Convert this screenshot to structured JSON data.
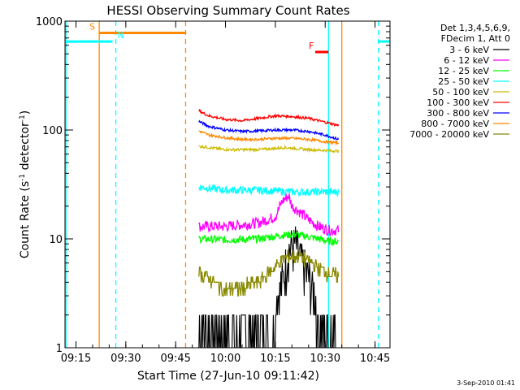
{
  "chart_data": {
    "type": "line",
    "title": "HESSI Observing Summary Count Rates",
    "xlabel": "Start Time (27-Jun-10 09:11:42)",
    "ylabel_main": "Count Rate (s",
    "ylabel_sup1": "-1",
    "ylabel_mid": " detector",
    "ylabel_sup2": "-1",
    "ylabel_end": ")",
    "footer": "3-Sep-2010 01:41",
    "yscale": "log",
    "xlim": [
      "09:11:42",
      "10:49:30"
    ],
    "ylim": [
      1,
      1000
    ],
    "x_ticks": [
      "09:15",
      "09:30",
      "09:45",
      "10:00",
      "10:15",
      "10:30",
      "10:45"
    ],
    "y_ticks": [
      {
        "label": "1",
        "value": 1
      },
      {
        "label": "10",
        "value": 10
      },
      {
        "label": "100",
        "value": 100
      },
      {
        "label": "1000",
        "value": 1000
      }
    ],
    "legend": {
      "header1": "Det 1,3,4,5,6,9,",
      "header2": "FDecim 1, Att 0",
      "position": "top-right"
    },
    "series": [
      {
        "name": "3 - 6 keV",
        "color": "#000000",
        "x": [
          "09:52",
          "10:00",
          "10:10",
          "10:13",
          "10:16",
          "10:18",
          "10:19",
          "10:21",
          "10:22",
          "10:24",
          "10:26",
          "10:28",
          "10:31",
          "10:34"
        ],
        "y": [
          1.7,
          1.6,
          1.7,
          1.9,
          3.5,
          6,
          9,
          10,
          8,
          6,
          4,
          2.5,
          1.6,
          1.5
        ]
      },
      {
        "name": "6 - 12 keV",
        "color": "#ff00ff",
        "x": [
          "09:52",
          "10:00",
          "10:10",
          "10:15",
          "10:17",
          "10:19",
          "10:20",
          "10:22",
          "10:25",
          "10:28",
          "10:31",
          "10:34"
        ],
        "y": [
          13,
          13,
          14,
          16,
          22,
          25,
          20,
          18,
          15,
          13,
          12,
          12
        ]
      },
      {
        "name": "12 - 25 keV",
        "color": "#00ff00",
        "x": [
          "09:52",
          "10:00",
          "10:10",
          "10:17",
          "10:21",
          "10:24",
          "10:28",
          "10:31",
          "10:34"
        ],
        "y": [
          10,
          9.8,
          10,
          10.8,
          11,
          10.6,
          10,
          9.5,
          9.5
        ]
      },
      {
        "name": "25 - 50 keV",
        "color": "#00ffff",
        "x": [
          "09:52",
          "10:00",
          "10:10",
          "10:20",
          "10:28",
          "10:34"
        ],
        "y": [
          30,
          28,
          28,
          27,
          27,
          27
        ]
      },
      {
        "name": "50 - 100 keV",
        "color": "#ccbb00",
        "x": [
          "09:52",
          "10:00",
          "10:10",
          "10:18",
          "10:25",
          "10:34"
        ],
        "y": [
          71,
          66,
          66,
          69,
          66,
          64
        ]
      },
      {
        "name": "100 - 300 keV",
        "color": "#ff0000",
        "x": [
          "09:52",
          "09:55",
          "10:00",
          "10:05",
          "10:10",
          "10:15",
          "10:20",
          "10:25",
          "10:30",
          "10:34"
        ],
        "y": [
          150,
          135,
          125,
          122,
          128,
          135,
          133,
          128,
          118,
          110
        ]
      },
      {
        "name": "300 - 800 keV",
        "color": "#0000ff",
        "x": [
          "09:52",
          "09:55",
          "10:00",
          "10:05",
          "10:10",
          "10:15",
          "10:20",
          "10:25",
          "10:30",
          "10:34"
        ],
        "y": [
          120,
          108,
          100,
          97,
          98,
          100,
          100,
          97,
          90,
          82
        ]
      },
      {
        "name": "800 - 7000 keV",
        "color": "#ff8800",
        "x": [
          "09:52",
          "09:55",
          "10:00",
          "10:05",
          "10:10",
          "10:15",
          "10:20",
          "10:25",
          "10:30",
          "10:34"
        ],
        "y": [
          98,
          90,
          85,
          82,
          82,
          84,
          84,
          82,
          78,
          76
        ]
      },
      {
        "name": "7000 - 20000 keV",
        "color": "#888800",
        "x": [
          "09:52",
          "09:55",
          "10:00",
          "10:05",
          "10:10",
          "10:14",
          "10:18",
          "10:22",
          "10:26",
          "10:30",
          "10:34"
        ],
        "y": [
          5,
          4.4,
          3.4,
          3.6,
          4,
          5.2,
          6.8,
          7,
          6,
          5,
          4.5
        ]
      }
    ],
    "annotations": [
      {
        "label": "S",
        "kind": "bar",
        "color": "#ff8800",
        "start": "09:22",
        "end": "09:48",
        "value": 780
      },
      {
        "label": "N",
        "kind": "bar",
        "color": "#00ffff",
        "start": "09:11:42",
        "end": "09:26",
        "value": 650
      },
      {
        "label": "",
        "kind": "bar",
        "color": "#00ffff",
        "start": "10:46",
        "end": "10:49:30",
        "value": 650
      },
      {
        "label": "F",
        "kind": "bar",
        "color": "#ff0000",
        "start": "10:27",
        "end": "10:31",
        "value": 520
      }
    ],
    "vlines": [
      {
        "x": "09:12",
        "color": "#00ffff",
        "style": "solid"
      },
      {
        "x": "09:22",
        "color": "#ff8800",
        "style": "solid"
      },
      {
        "x": "09:27",
        "color": "#00ffff",
        "style": "dashed"
      },
      {
        "x": "09:48",
        "color": "#ff8800",
        "style": "dashed"
      },
      {
        "x": "10:31",
        "color": "#00ffff",
        "style": "solid"
      },
      {
        "x": "10:35",
        "color": "#ff8800",
        "style": "solid"
      },
      {
        "x": "10:46",
        "color": "#00ffff",
        "style": "dashed"
      }
    ]
  }
}
